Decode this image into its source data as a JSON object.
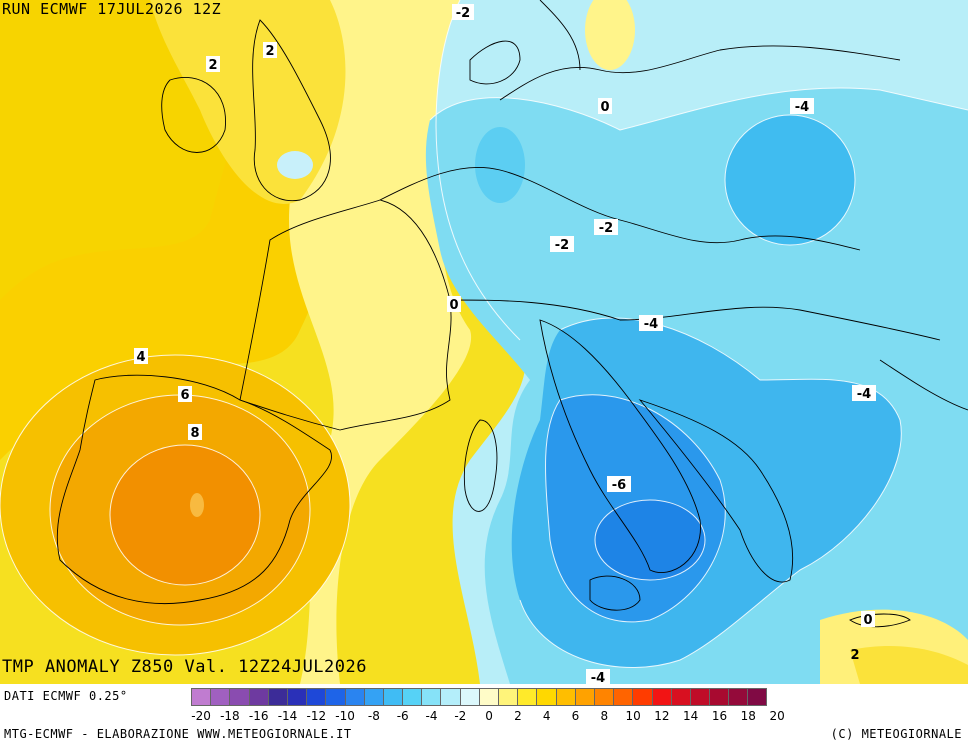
{
  "header": {
    "run_label": "RUN ECMWF 17JUL2026 12Z"
  },
  "map": {
    "title": "TMP ANOMALY Z850 Val. 12Z24JUL2026",
    "contour_labels": [
      "-2",
      "2",
      "2",
      "0",
      "-4",
      "-2",
      "-2",
      "0",
      "-4",
      "4",
      "6",
      "8",
      "-4",
      "-6",
      "0",
      "2",
      "-4"
    ]
  },
  "footer": {
    "data_source": "DATI ECMWF 0.25°",
    "credit": "MTG-ECMWF - ELABORAZIONE WWW.METEOGIORNALE.IT",
    "copyright": "(C) METEOGIORNALE"
  },
  "legend": {
    "colors": [
      "#c07cd0",
      "#a060c0",
      "#8a4cb0",
      "#6e3aa0",
      "#3c2c98",
      "#2a30b8",
      "#1e48d8",
      "#1e64e8",
      "#2a84f0",
      "#34a2f4",
      "#40bcf4",
      "#56d2f6",
      "#86e2f8",
      "#b4eefa",
      "#dcf8fc",
      "#fffcc8",
      "#fff47a",
      "#ffea2a",
      "#ffd800",
      "#ffbe00",
      "#ffa200",
      "#ff8400",
      "#ff6400",
      "#ff3c00",
      "#f21414",
      "#d81020",
      "#c00c28",
      "#a80a30",
      "#940a3a",
      "#800a44"
    ],
    "tick_labels": [
      "-20",
      "-18",
      "-16",
      "-14",
      "-12",
      "-10",
      "-8",
      "-6",
      "-4",
      "-2",
      "0",
      "2",
      "4",
      "6",
      "8",
      "10",
      "12",
      "14",
      "16",
      "18",
      "20"
    ]
  }
}
